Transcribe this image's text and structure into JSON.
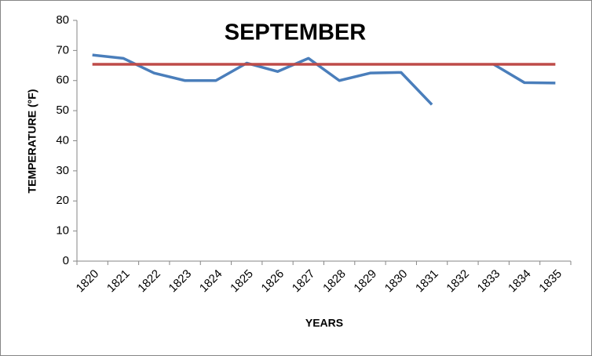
{
  "chart_data": {
    "type": "line",
    "title": "SEPTEMBER",
    "x_label": "YEARS",
    "y_label": "TEMPERATURE (°F)",
    "categories": [
      "1820",
      "1821",
      "1822",
      "1823",
      "1824",
      "1825",
      "1826",
      "1827",
      "1828",
      "1829",
      "1830",
      "1831",
      "1832",
      "1833",
      "1834",
      "1835"
    ],
    "series": [
      {
        "color": "#4a7ebb",
        "values": [
          68.5,
          67.4,
          62.5,
          60,
          60,
          65.8,
          63,
          67.4,
          60,
          62.5,
          62.7,
          52,
          null,
          65.4,
          59.3,
          59.2
        ]
      },
      {
        "color": "#be4b48",
        "values": [
          65.4,
          65.4,
          65.4,
          65.4,
          65.4,
          65.4,
          65.4,
          65.4,
          65.4,
          65.4,
          65.4,
          65.4,
          65.4,
          65.4,
          65.4,
          65.4
        ]
      }
    ],
    "ylim": [
      0,
      80
    ],
    "yticks": [
      0,
      10,
      20,
      30,
      40,
      50,
      60,
      70,
      80
    ],
    "grid": false
  }
}
